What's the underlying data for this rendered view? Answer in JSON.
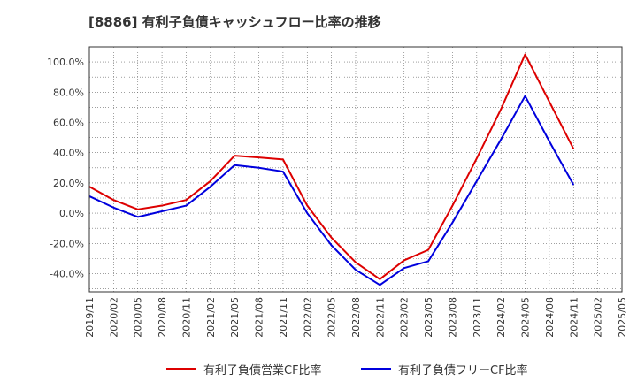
{
  "chart_data": {
    "type": "line",
    "title": "[8886]  有利子負債キャッシュフロー比率の推移",
    "xlabel": "",
    "ylabel": "",
    "ylim": [
      -52,
      110
    ],
    "y_ticks": [
      -40,
      -20,
      0,
      20,
      40,
      60,
      80,
      100
    ],
    "y_tick_labels": [
      "-40.0%",
      "-20.0%",
      "0.0%",
      "20.0%",
      "40.0%",
      "60.0%",
      "80.0%",
      "100.0%"
    ],
    "x_tick_labels": [
      "2019/11",
      "2020/02",
      "2020/05",
      "2020/08",
      "2020/11",
      "2021/02",
      "2021/05",
      "2021/08",
      "2021/11",
      "2022/02",
      "2022/05",
      "2022/08",
      "2022/11",
      "2023/02",
      "2023/05",
      "2023/08",
      "2023/11",
      "2024/02",
      "2024/05",
      "2024/08",
      "2024/11",
      "2025/02",
      "2025/05"
    ],
    "x": [
      "2019/11",
      "2020/02",
      "2020/05",
      "2020/08",
      "2020/11",
      "2021/02",
      "2021/05",
      "2021/08",
      "2021/11",
      "2022/02",
      "2022/05",
      "2022/08",
      "2022/11",
      "2023/02",
      "2023/05",
      "2023/08",
      "2023/11",
      "2024/02",
      "2024/05",
      "2024/08",
      "2024/11"
    ],
    "grid": true,
    "legend_position": "bottom",
    "series": [
      {
        "name": "有利子負債営業CF比率",
        "color": "#dd0000",
        "values": [
          17.5,
          8.7,
          2.5,
          5.0,
          8.7,
          21.2,
          38.0,
          36.8,
          35.5,
          5.0,
          -16.2,
          -32.5,
          -43.7,
          -31.2,
          -24.3,
          5.0,
          36.2,
          68.7,
          105.0,
          73.7,
          42.5
        ]
      },
      {
        "name": "有利子負債フリーCF比率",
        "color": "#0000dd",
        "values": [
          11.2,
          3.7,
          -2.5,
          1.2,
          5.0,
          17.5,
          31.8,
          30.0,
          27.5,
          0.0,
          -21.3,
          -37.5,
          -47.5,
          -36.3,
          -31.8,
          -6.2,
          21.2,
          48.7,
          77.5,
          47.5,
          18.7
        ]
      }
    ]
  }
}
